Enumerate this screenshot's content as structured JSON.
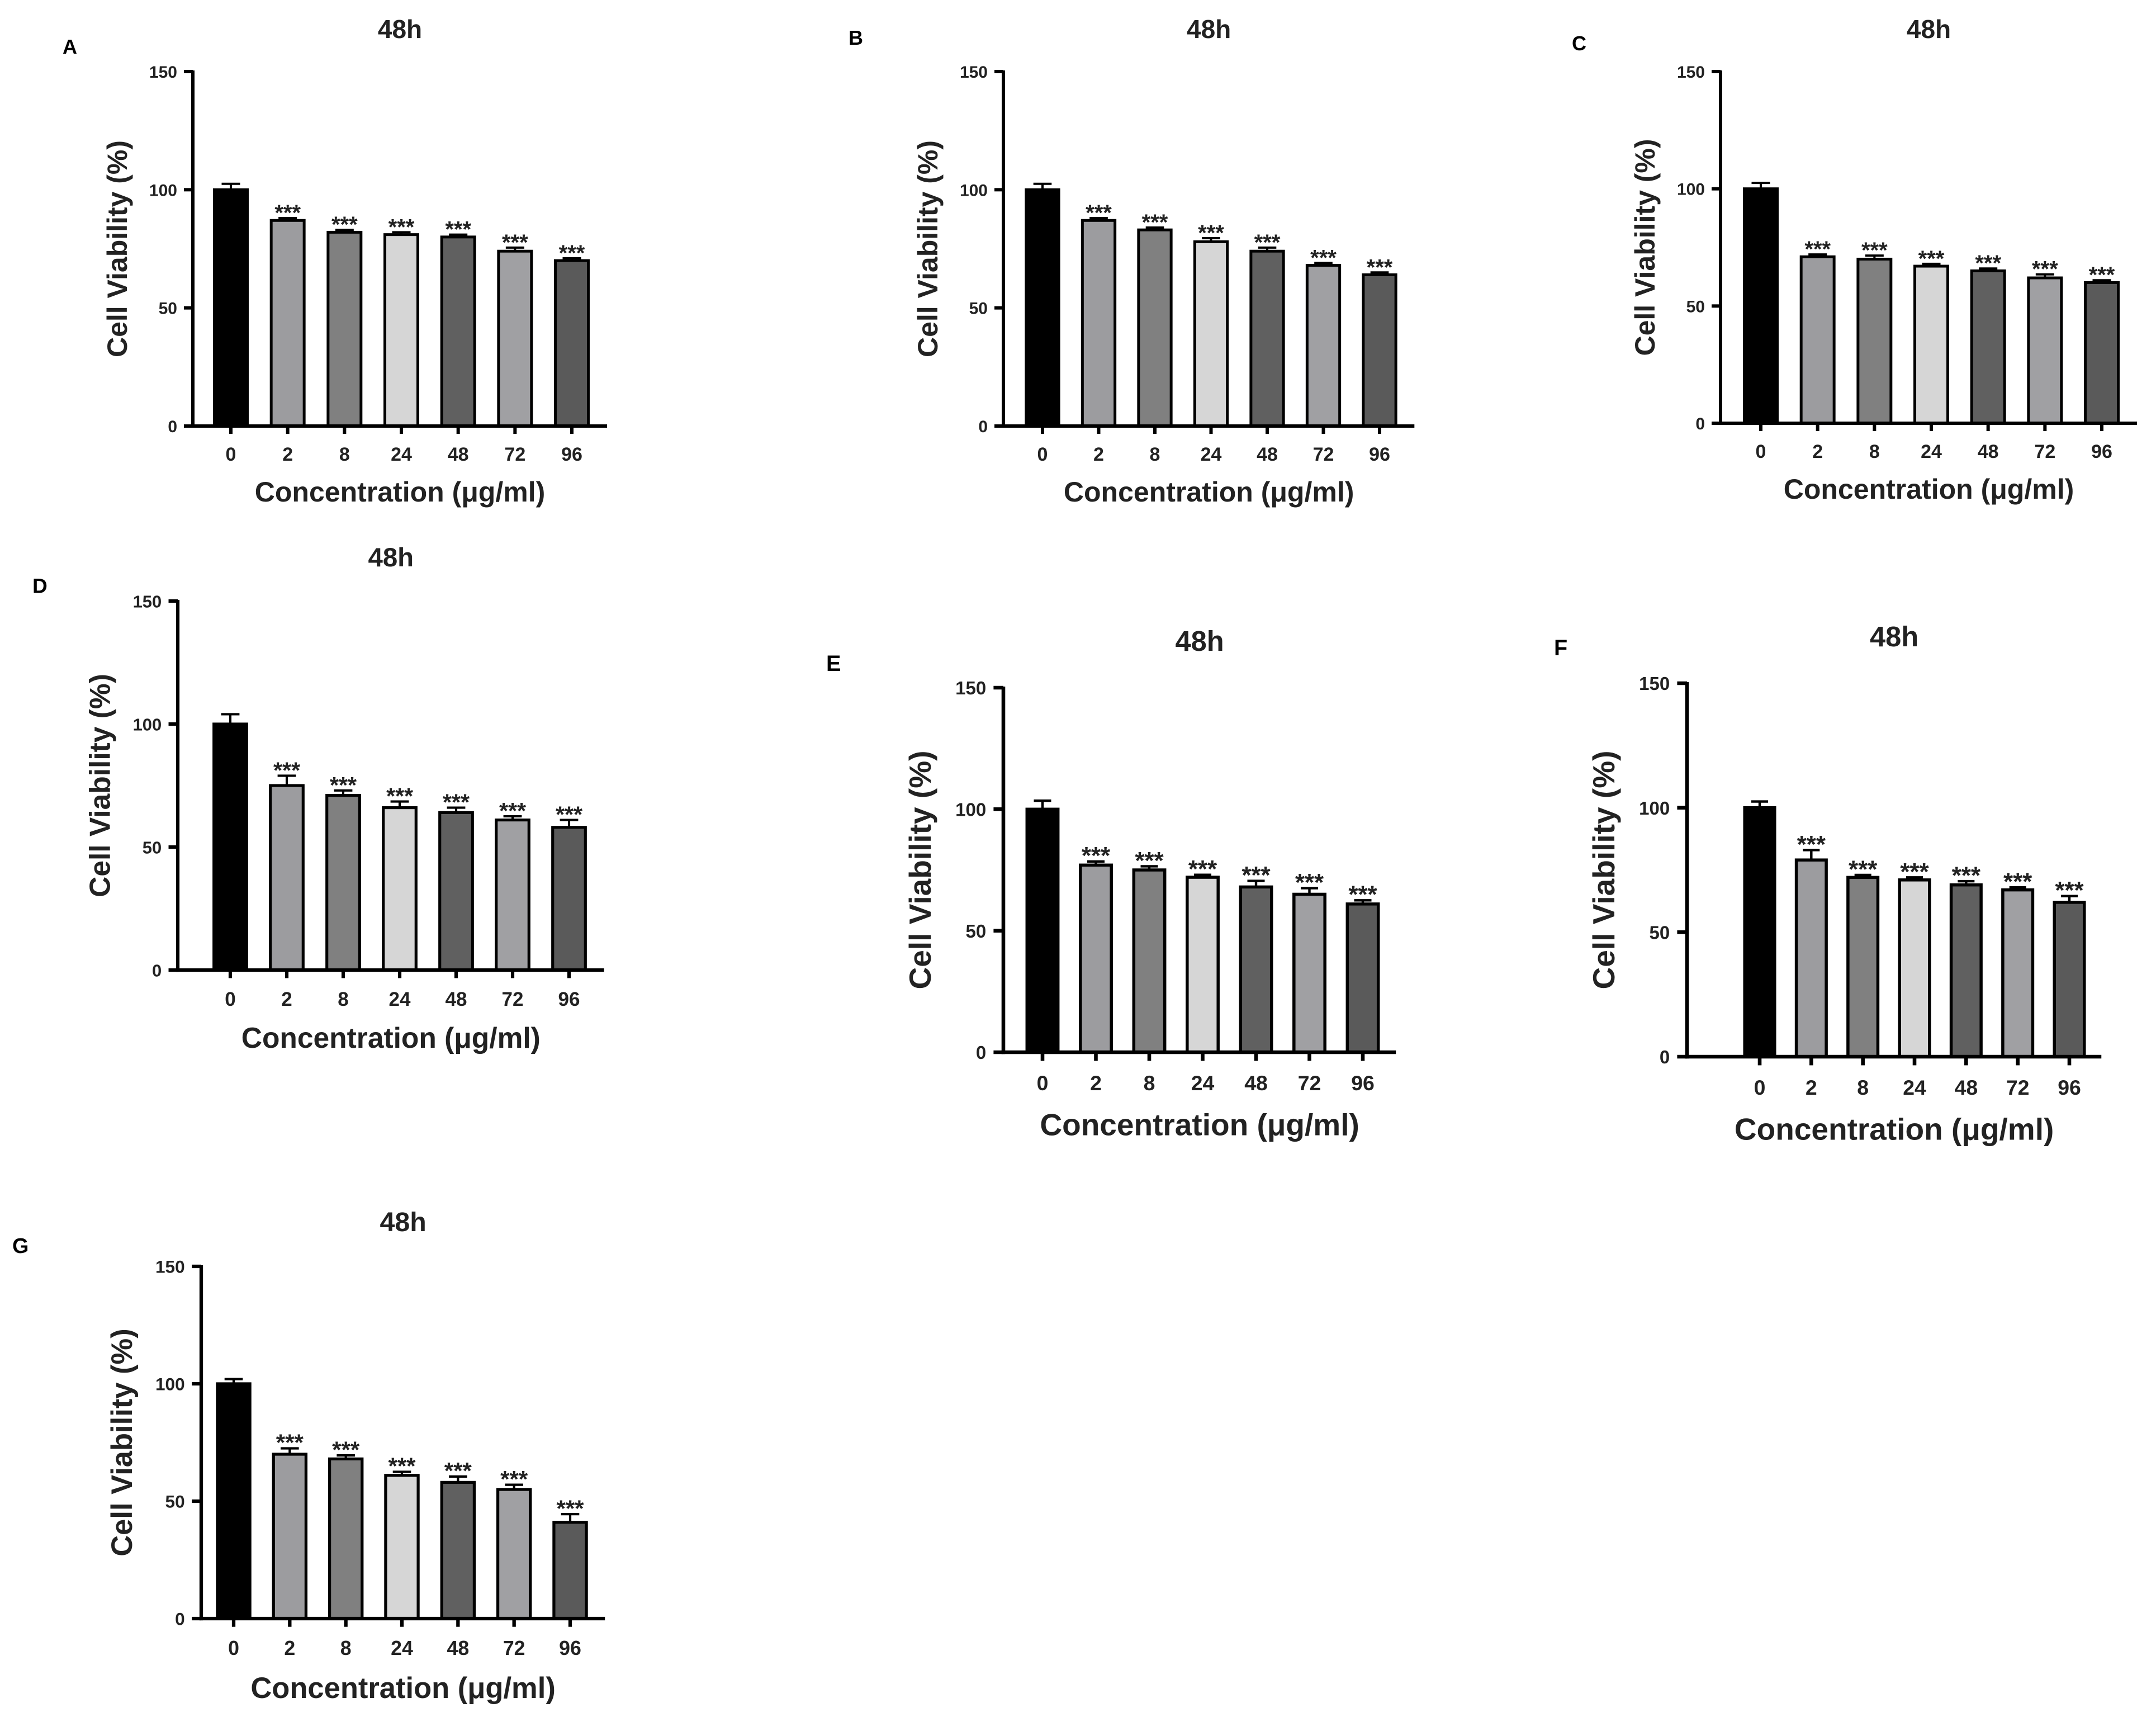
{
  "figure": {
    "background": "#ffffff",
    "text_color": "#222222",
    "bar_colors": [
      "#000000",
      "#9c9c9f",
      "#808080",
      "#d6d6d6",
      "#606060",
      "#a0a0a3",
      "#5a5a5a"
    ]
  },
  "chart_data": [
    {
      "panel": "A",
      "type": "bar",
      "title": "48h",
      "xlabel": "Concentration (μg/ml)",
      "ylabel": "Cell Viability (%)",
      "ylim": [
        0,
        150
      ],
      "yticks": [
        "0",
        "50",
        "100",
        "150"
      ],
      "categories": [
        "0",
        "2",
        "8",
        "24",
        "48",
        "72",
        "96"
      ],
      "values": [
        100,
        87,
        82,
        81,
        80,
        74,
        70
      ],
      "errors": [
        2.5,
        1,
        1,
        1,
        1,
        1.5,
        1
      ],
      "significance": [
        "",
        "***",
        "***",
        "***",
        "***",
        "***",
        "***"
      ]
    },
    {
      "panel": "B",
      "type": "bar",
      "title": "48h",
      "xlabel": "Concentration (μg/ml)",
      "ylabel": "Cell Viability (%)",
      "ylim": [
        0,
        150
      ],
      "yticks": [
        "0",
        "50",
        "100",
        "150"
      ],
      "categories": [
        "0",
        "2",
        "8",
        "24",
        "48",
        "72",
        "96"
      ],
      "values": [
        100,
        87,
        83,
        78,
        74,
        68,
        64
      ],
      "errors": [
        2.5,
        1,
        1,
        1.5,
        1.5,
        1,
        1
      ],
      "significance": [
        "",
        "***",
        "***",
        "***",
        "***",
        "***",
        "***"
      ]
    },
    {
      "panel": "C",
      "type": "bar",
      "title": "48h",
      "xlabel": "Concentration (μg/ml)",
      "ylabel": "Cell Viability (%)",
      "ylim": [
        0,
        150
      ],
      "yticks": [
        "0",
        "50",
        "100",
        "150"
      ],
      "categories": [
        "0",
        "2",
        "8",
        "24",
        "48",
        "72",
        "96"
      ],
      "values": [
        100,
        71,
        70,
        67,
        65,
        62,
        60
      ],
      "errors": [
        2.5,
        1,
        1.5,
        1,
        1,
        1.5,
        1
      ],
      "significance": [
        "",
        "***",
        "***",
        "***",
        "***",
        "***",
        "***"
      ]
    },
    {
      "panel": "D",
      "type": "bar",
      "title": "48h",
      "xlabel": "Concentration (μg/ml)",
      "ylabel": "Cell Viability (%)",
      "ylim": [
        0,
        150
      ],
      "yticks": [
        "0",
        "50",
        "100",
        "150"
      ],
      "categories": [
        "0",
        "2",
        "8",
        "24",
        "48",
        "72",
        "96"
      ],
      "values": [
        100,
        75,
        71,
        66,
        64,
        61,
        58
      ],
      "errors": [
        4,
        4,
        2,
        2.5,
        2,
        1.5,
        3
      ],
      "significance": [
        "",
        "***",
        "***",
        "***",
        "***",
        "***",
        "***"
      ]
    },
    {
      "panel": "E",
      "type": "bar",
      "title": "48h",
      "xlabel": "Concentration (μg/ml)",
      "ylabel": "Cell Viability (%)",
      "ylim": [
        0,
        150
      ],
      "yticks": [
        "0",
        "50",
        "100",
        "150"
      ],
      "categories": [
        "0",
        "2",
        "8",
        "24",
        "48",
        "72",
        "96"
      ],
      "values": [
        100,
        77,
        75,
        72,
        68,
        65,
        61
      ],
      "errors": [
        3.5,
        1.5,
        1.5,
        1,
        2.5,
        2.5,
        1.5
      ],
      "significance": [
        "",
        "***",
        "***",
        "***",
        "***",
        "***",
        "***"
      ]
    },
    {
      "panel": "F",
      "type": "bar",
      "title": "48h",
      "xlabel": "Concentration (μg/ml)",
      "ylabel": "Cell Viability (%)",
      "ylim": [
        0,
        150
      ],
      "yticks": [
        "0",
        "50",
        "100",
        "150"
      ],
      "categories": [
        "0",
        "2",
        "8",
        "24",
        "48",
        "72",
        "96"
      ],
      "values": [
        100,
        79,
        72,
        71,
        69,
        67,
        62
      ],
      "errors": [
        2.5,
        4,
        1,
        1,
        1.5,
        1,
        2.5
      ],
      "significance": [
        "",
        "***",
        "***",
        "***",
        "***",
        "***",
        "***"
      ]
    },
    {
      "panel": "G",
      "type": "bar",
      "title": "48h",
      "xlabel": "Concentration (μg/ml)",
      "ylabel": "Cell Viability (%)",
      "ylim": [
        0,
        150
      ],
      "yticks": [
        "0",
        "50",
        "100",
        "150"
      ],
      "categories": [
        "0",
        "2",
        "8",
        "24",
        "48",
        "72",
        "96"
      ],
      "values": [
        100,
        70,
        68,
        61,
        58,
        55,
        41
      ],
      "errors": [
        2,
        2.5,
        1.5,
        1.5,
        2.5,
        2,
        3.5
      ],
      "significance": [
        "",
        "***",
        "***",
        "***",
        "***",
        "***",
        "***"
      ]
    }
  ]
}
